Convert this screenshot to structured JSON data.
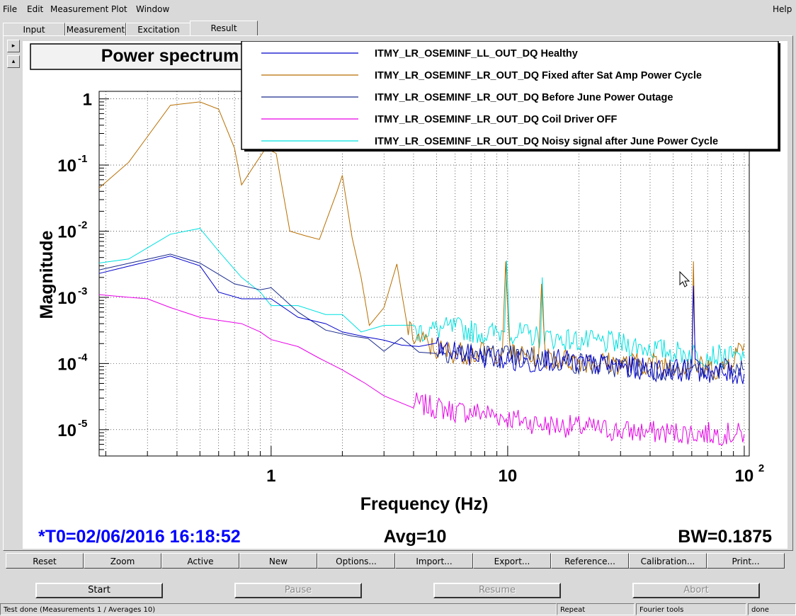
{
  "menu": {
    "file": "File",
    "edit": "Edit",
    "measurement": "Measurement",
    "plot": "Plot",
    "window": "Window",
    "help": "Help"
  },
  "tabs": [
    {
      "label": "Input"
    },
    {
      "label": "Measurement"
    },
    {
      "label": "Excitation"
    },
    {
      "label": "Result"
    }
  ],
  "plot": {
    "title": "Power spectrum",
    "t0": "*T0=02/06/2016 16:18:52",
    "avg": "Avg=10",
    "bw": "BW=0.1875",
    "colors": {
      "blue": "#0000cc",
      "orange": "#b86e00",
      "navy": "#1a2a8c",
      "magenta": "#e800e8",
      "cyan": "#00e0e0",
      "t0": "#0000ff"
    }
  },
  "chart_data": {
    "type": "line",
    "title": "Power spectrum",
    "xlabel": "Frequency (Hz)",
    "ylabel": "Magnitude",
    "xscale": "log",
    "yscale": "log",
    "xlim": [
      0.1875,
      105
    ],
    "ylim": [
      4e-06,
      1.3
    ],
    "x_ticks": [
      {
        "value": 1,
        "label": "1"
      },
      {
        "value": 10,
        "label": "10"
      },
      {
        "value": 100,
        "label": "10",
        "exp": "2"
      }
    ],
    "y_ticks": [
      {
        "value": 1,
        "label": "1",
        "exp": ""
      },
      {
        "value": 0.1,
        "label": "10",
        "exp": "-1"
      },
      {
        "value": 0.01,
        "label": "10",
        "exp": "-2"
      },
      {
        "value": 0.001,
        "label": "10",
        "exp": "-3"
      },
      {
        "value": 0.0001,
        "label": "10",
        "exp": "-4"
      },
      {
        "value": 1e-05,
        "label": "10",
        "exp": "-5"
      }
    ],
    "grid": true,
    "legend_position": "top-right",
    "series": [
      {
        "name": "ITMY_LR_OSEMINF_LL_OUT_DQ Healthy",
        "color": "#0000cc",
        "points": [
          [
            0.1875,
            0.0023
          ],
          [
            0.375,
            0.0042
          ],
          [
            0.5,
            0.003
          ],
          [
            0.6,
            0.0012
          ],
          [
            0.75,
            0.00095
          ],
          [
            1,
            0.00095
          ],
          [
            1.3,
            0.0005
          ],
          [
            1.7,
            0.0004
          ],
          [
            2,
            0.0003
          ],
          [
            3,
            0.00022
          ],
          [
            5,
            0.00017
          ],
          [
            7,
            0.00013
          ],
          [
            9,
            0.00012
          ],
          [
            10,
            0.00011
          ],
          [
            13,
            0.0001
          ],
          [
            14,
            0.00012
          ],
          [
            20,
            0.0001
          ],
          [
            30,
            9e-05
          ],
          [
            40,
            8e-05
          ],
          [
            60,
            8e-05
          ],
          [
            61,
            0.0015
          ],
          [
            62,
            8e-05
          ],
          [
            80,
            7e-05
          ],
          [
            100,
            7e-05
          ]
        ]
      },
      {
        "name": "ITMY_LR_OSEMINF_LR_OUT_DQ Fixed after Sat Amp Power Cycle",
        "color": "#b86e00",
        "points": [
          [
            0.1875,
            0.045
          ],
          [
            0.25,
            0.11
          ],
          [
            0.375,
            0.8
          ],
          [
            0.5,
            0.9
          ],
          [
            0.6,
            0.7
          ],
          [
            0.7,
            0.18
          ],
          [
            0.75,
            0.05
          ],
          [
            0.85,
            0.1
          ],
          [
            0.95,
            0.18
          ],
          [
            1.05,
            0.15
          ],
          [
            1.2,
            0.01
          ],
          [
            1.4,
            0.0085
          ],
          [
            1.6,
            0.0075
          ],
          [
            1.9,
            0.04
          ],
          [
            2,
            0.07
          ],
          [
            2.2,
            0.008
          ],
          [
            2.4,
            0.002
          ],
          [
            2.6,
            0.0005
          ],
          [
            3,
            0.0007
          ],
          [
            3.4,
            0.0032
          ],
          [
            3.8,
            0.0003
          ],
          [
            5,
            0.00016
          ],
          [
            7,
            0.00014
          ],
          [
            9.5,
            0.00015
          ],
          [
            9.8,
            0.0035
          ],
          [
            10.2,
            0.00014
          ],
          [
            13.5,
            0.00012
          ],
          [
            13.9,
            0.0016
          ],
          [
            14.4,
            0.00012
          ],
          [
            20,
            0.00011
          ],
          [
            30,
            0.0001
          ],
          [
            45,
            0.0001
          ],
          [
            60,
            9e-05
          ],
          [
            61,
            0.0035
          ],
          [
            62,
            9e-05
          ],
          [
            80,
            8e-05
          ],
          [
            100,
            0.0002
          ]
        ]
      },
      {
        "name": "ITMY_LR_OSEMINF_LR_OUT_DQ Before June Power Outage",
        "color": "#1a2a8c",
        "points": [
          [
            0.1875,
            0.0026
          ],
          [
            0.375,
            0.0045
          ],
          [
            0.5,
            0.0033
          ],
          [
            0.7,
            0.0016
          ],
          [
            0.9,
            0.0013
          ],
          [
            1,
            0.0014
          ],
          [
            1.3,
            0.0006
          ],
          [
            1.7,
            0.00032
          ],
          [
            2.2,
            0.00026
          ],
          [
            3,
            0.00022
          ],
          [
            5,
            0.00016
          ],
          [
            7,
            0.00014
          ],
          [
            10,
            0.00013
          ],
          [
            14,
            0.00012
          ],
          [
            20,
            0.0001
          ],
          [
            30,
            9e-05
          ],
          [
            50,
            8e-05
          ],
          [
            100,
            8e-05
          ]
        ]
      },
      {
        "name": "ITMY_LR_OSEMINF_LR_OUT_DQ Coil Driver OFF",
        "color": "#e800e8",
        "points": [
          [
            0.1875,
            0.0011
          ],
          [
            0.25,
            0.001
          ],
          [
            0.3,
            0.00095
          ],
          [
            0.375,
            0.0007
          ],
          [
            0.5,
            0.0005
          ],
          [
            0.6,
            0.00045
          ],
          [
            0.75,
            0.0004
          ],
          [
            0.9,
            0.0003
          ],
          [
            1,
            0.00023
          ],
          [
            1.3,
            0.00018
          ],
          [
            1.6,
            0.00012
          ],
          [
            2,
            8e-05
          ],
          [
            2.5,
            5e-05
          ],
          [
            3,
            3e-05
          ],
          [
            4,
            2.5e-05
          ],
          [
            6,
            1.9e-05
          ],
          [
            8,
            1.8e-05
          ],
          [
            10,
            1.5e-05
          ],
          [
            14,
            1.2e-05
          ],
          [
            20,
            1.1e-05
          ],
          [
            30,
            9.5e-06
          ],
          [
            50,
            9e-06
          ],
          [
            100,
            8.5e-06
          ]
        ]
      },
      {
        "name": "ITMY_LR_OSEMINF_LR_OUT_DQ Noisy signal after June Power Cycle",
        "color": "#00e0e0",
        "points": [
          [
            0.1875,
            0.0033
          ],
          [
            0.25,
            0.0038
          ],
          [
            0.375,
            0.009
          ],
          [
            0.5,
            0.011
          ],
          [
            0.6,
            0.005
          ],
          [
            0.75,
            0.002
          ],
          [
            0.9,
            0.0012
          ],
          [
            1,
            0.00075
          ],
          [
            1.3,
            0.00075
          ],
          [
            1.7,
            0.00055
          ],
          [
            2,
            0.00055
          ],
          [
            2.4,
            0.0003
          ],
          [
            3,
            0.00045
          ],
          [
            4,
            0.0003
          ],
          [
            6,
            0.00035
          ],
          [
            8,
            0.00028
          ],
          [
            9.7,
            0.0003
          ],
          [
            9.9,
            0.0036
          ],
          [
            10.2,
            0.0003
          ],
          [
            13.8,
            0.00025
          ],
          [
            14,
            0.002
          ],
          [
            14.3,
            0.00025
          ],
          [
            20,
            0.00022
          ],
          [
            30,
            0.0002
          ],
          [
            50,
            0.00015
          ],
          [
            100,
            0.00012
          ]
        ]
      }
    ]
  },
  "toolbar": [
    {
      "label": "Reset"
    },
    {
      "label": "Zoom"
    },
    {
      "label": "Active"
    },
    {
      "label": "New"
    },
    {
      "label": "Options..."
    },
    {
      "label": "Import..."
    },
    {
      "label": "Export..."
    },
    {
      "label": "Reference..."
    },
    {
      "label": "Calibration..."
    },
    {
      "label": "Print..."
    }
  ],
  "controls": {
    "start": "Start",
    "pause": "Pause",
    "resume": "Resume",
    "abort": "Abort"
  },
  "status": {
    "message": "Test done (Measurements 1 / Averages 10)",
    "repeat": "Repeat",
    "fourier": "Fourier tools",
    "done": "done"
  }
}
